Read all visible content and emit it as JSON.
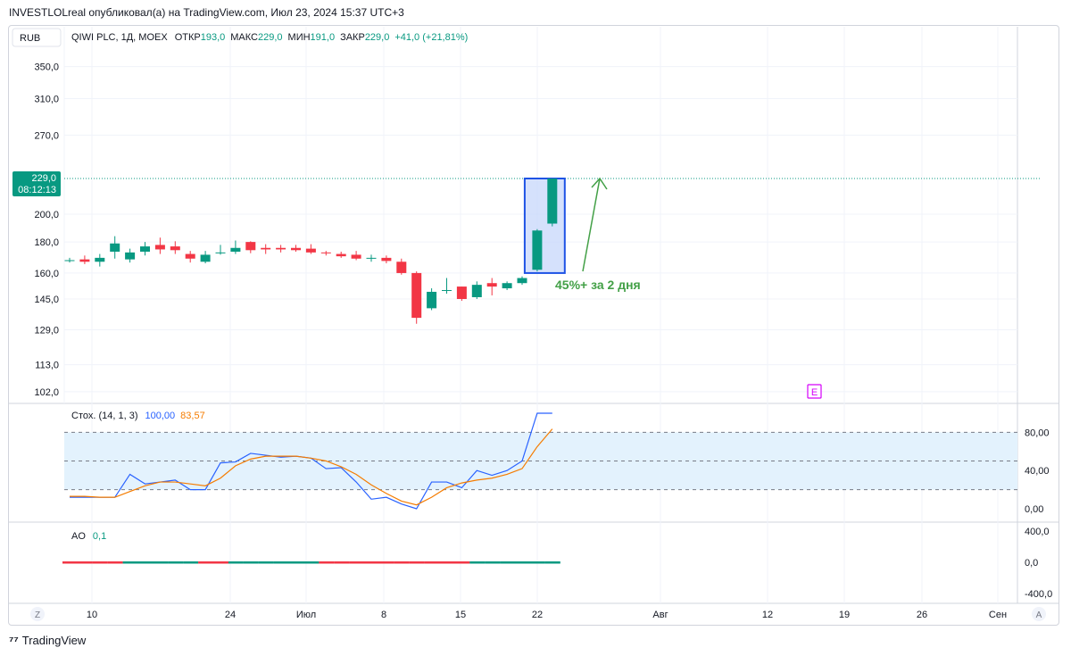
{
  "header": {
    "publisher_line": "INVESTLOLreal опубликовал(а) на TradingView.com, Июл 23, 2024 15:37 UTC+3"
  },
  "toolbar": {
    "currency": "RUB",
    "symbol_line": "QIWI PLC, 1Д, MOEX",
    "open_label": "ОТКР",
    "open_value": "193,0",
    "high_label": "МАКС",
    "high_value": "229,0",
    "low_label": "МИН",
    "low_value": "191,0",
    "close_label": "ЗАКР",
    "close_value": "229,0",
    "change": "+41,0 (+21,81%)"
  },
  "price_tag": {
    "price": "229,0",
    "countdown": "08:12:13"
  },
  "annotation": {
    "text": "45%+ за 2 дня"
  },
  "earnings_marker": "E",
  "footer": {
    "brand": "TradingView"
  },
  "buttons": {
    "left": "Z",
    "right": "A"
  },
  "colors": {
    "up": "#089981",
    "down": "#f23645",
    "stoch_k": "#2962ff",
    "stoch_d": "#f57c00",
    "annotation": "#43a047",
    "highlight_fill": "#c7d7fb",
    "highlight_stroke": "#1e53e5",
    "band_fill": "#e3f2fd",
    "earnings": "#d500f9"
  },
  "chart_data": [
    {
      "type": "candlestick",
      "y_ticks": [
        "350,0",
        "310,0",
        "270,0",
        "229,0",
        "200,0",
        "180,0",
        "160,0",
        "145,0",
        "129,0",
        "113,0",
        "102,0"
      ],
      "x_ticks": [
        "10",
        "24",
        "Июл",
        "8",
        "15",
        "22",
        "Авг",
        "12",
        "19",
        "26",
        "Сен"
      ],
      "last_price": 229.0,
      "candles": [
        {
          "o": 168.0,
          "h": 169.5,
          "l": 166.5,
          "c": 168.0
        },
        {
          "o": 168.5,
          "h": 171.0,
          "l": 165.5,
          "c": 167.0
        },
        {
          "o": 167.0,
          "h": 172.0,
          "l": 164.0,
          "c": 169.5
        },
        {
          "o": 173.5,
          "h": 184.0,
          "l": 169.0,
          "c": 179.0
        },
        {
          "o": 168.5,
          "h": 175.5,
          "l": 166.5,
          "c": 173.0
        },
        {
          "o": 173.5,
          "h": 180.0,
          "l": 171.0,
          "c": 177.0
        },
        {
          "o": 178.0,
          "h": 183.0,
          "l": 172.0,
          "c": 175.0
        },
        {
          "o": 177.0,
          "h": 180.5,
          "l": 172.0,
          "c": 174.5
        },
        {
          "o": 172.0,
          "h": 174.0,
          "l": 166.5,
          "c": 169.0
        },
        {
          "o": 167.0,
          "h": 174.0,
          "l": 166.0,
          "c": 171.5
        },
        {
          "o": 172.5,
          "h": 178.0,
          "l": 171.5,
          "c": 173.0
        },
        {
          "o": 173.5,
          "h": 181.0,
          "l": 172.0,
          "c": 176.0
        },
        {
          "o": 180.0,
          "h": 180.5,
          "l": 172.5,
          "c": 174.5
        },
        {
          "o": 176.0,
          "h": 178.5,
          "l": 172.0,
          "c": 175.0
        },
        {
          "o": 176.0,
          "h": 178.0,
          "l": 173.0,
          "c": 175.0
        },
        {
          "o": 176.0,
          "h": 178.0,
          "l": 173.5,
          "c": 174.5
        },
        {
          "o": 175.5,
          "h": 178.5,
          "l": 172.0,
          "c": 173.0
        },
        {
          "o": 173.0,
          "h": 174.0,
          "l": 171.0,
          "c": 172.5
        },
        {
          "o": 172.0,
          "h": 173.5,
          "l": 169.5,
          "c": 170.5
        },
        {
          "o": 171.5,
          "h": 174.0,
          "l": 168.0,
          "c": 169.0
        },
        {
          "o": 169.0,
          "h": 171.5,
          "l": 167.0,
          "c": 169.5
        },
        {
          "o": 169.5,
          "h": 171.0,
          "l": 166.0,
          "c": 167.5
        },
        {
          "o": 167.0,
          "h": 169.0,
          "l": 159.0,
          "c": 160.0
        },
        {
          "o": 160.0,
          "h": 161.0,
          "l": 132.0,
          "c": 135.0
        },
        {
          "o": 140.0,
          "h": 151.0,
          "l": 139.0,
          "c": 149.0
        },
        {
          "o": 150.0,
          "h": 157.0,
          "l": 148.0,
          "c": 150.0
        },
        {
          "o": 152.0,
          "h": 152.0,
          "l": 144.0,
          "c": 145.0
        },
        {
          "o": 146.0,
          "h": 155.0,
          "l": 145.0,
          "c": 153.0
        },
        {
          "o": 154.0,
          "h": 157.0,
          "l": 147.0,
          "c": 152.0
        },
        {
          "o": 151.0,
          "h": 155.0,
          "l": 150.0,
          "c": 154.0
        },
        {
          "o": 154.0,
          "h": 158.0,
          "l": 153.0,
          "c": 157.0
        },
        {
          "o": 162.0,
          "h": 189.0,
          "l": 161.0,
          "c": 188.0
        },
        {
          "o": 193.0,
          "h": 229.0,
          "l": 191.0,
          "c": 229.0
        }
      ]
    },
    {
      "type": "line",
      "name": "Стох. (14, 1, 3)",
      "params": "(14, 1, 3)",
      "label": "Стох.",
      "k_value": "100,00",
      "d_value": "83,57",
      "y_ticks": [
        "80,00",
        "40,00",
        "0,00"
      ],
      "band": [
        20,
        80
      ],
      "series": [
        {
          "name": "K",
          "values": [
            12,
            12,
            12,
            12,
            36,
            26,
            28,
            30,
            20,
            20,
            48,
            49,
            58,
            56,
            54,
            55,
            53,
            42,
            43,
            28,
            10,
            12,
            5,
            0,
            28,
            28,
            22,
            40,
            35,
            40,
            50,
            100,
            100
          ]
        },
        {
          "name": "D",
          "values": [
            13,
            13,
            12,
            12,
            18,
            24,
            28,
            28,
            26,
            24,
            32,
            45,
            52,
            55,
            55,
            55,
            53,
            50,
            44,
            36,
            25,
            16,
            8,
            4,
            12,
            22,
            27,
            30,
            32,
            36,
            42,
            65,
            83.57
          ]
        }
      ]
    },
    {
      "type": "bar",
      "name": "AO",
      "label": "AO",
      "value": "0,1",
      "y_ticks": [
        "400,0",
        "0,0",
        "-400,0"
      ],
      "values": [
        -9,
        -8,
        -7,
        -6,
        -5,
        -4,
        -3,
        -3,
        -3,
        -2,
        -2,
        -1,
        -1,
        -1,
        -2,
        -2,
        -2,
        -3,
        -3,
        -4,
        -5,
        -7,
        -9,
        -12,
        -13,
        -12,
        -11,
        -9,
        -7,
        -5,
        -3,
        -1,
        0.1
      ],
      "colors_pattern": "red,red,red,red,green,green,green,green,green,red,red,green,green,green,green,green,green,red,red,red,red,red,red,red,red,red,red,green,green,green,green,green,green"
    }
  ]
}
